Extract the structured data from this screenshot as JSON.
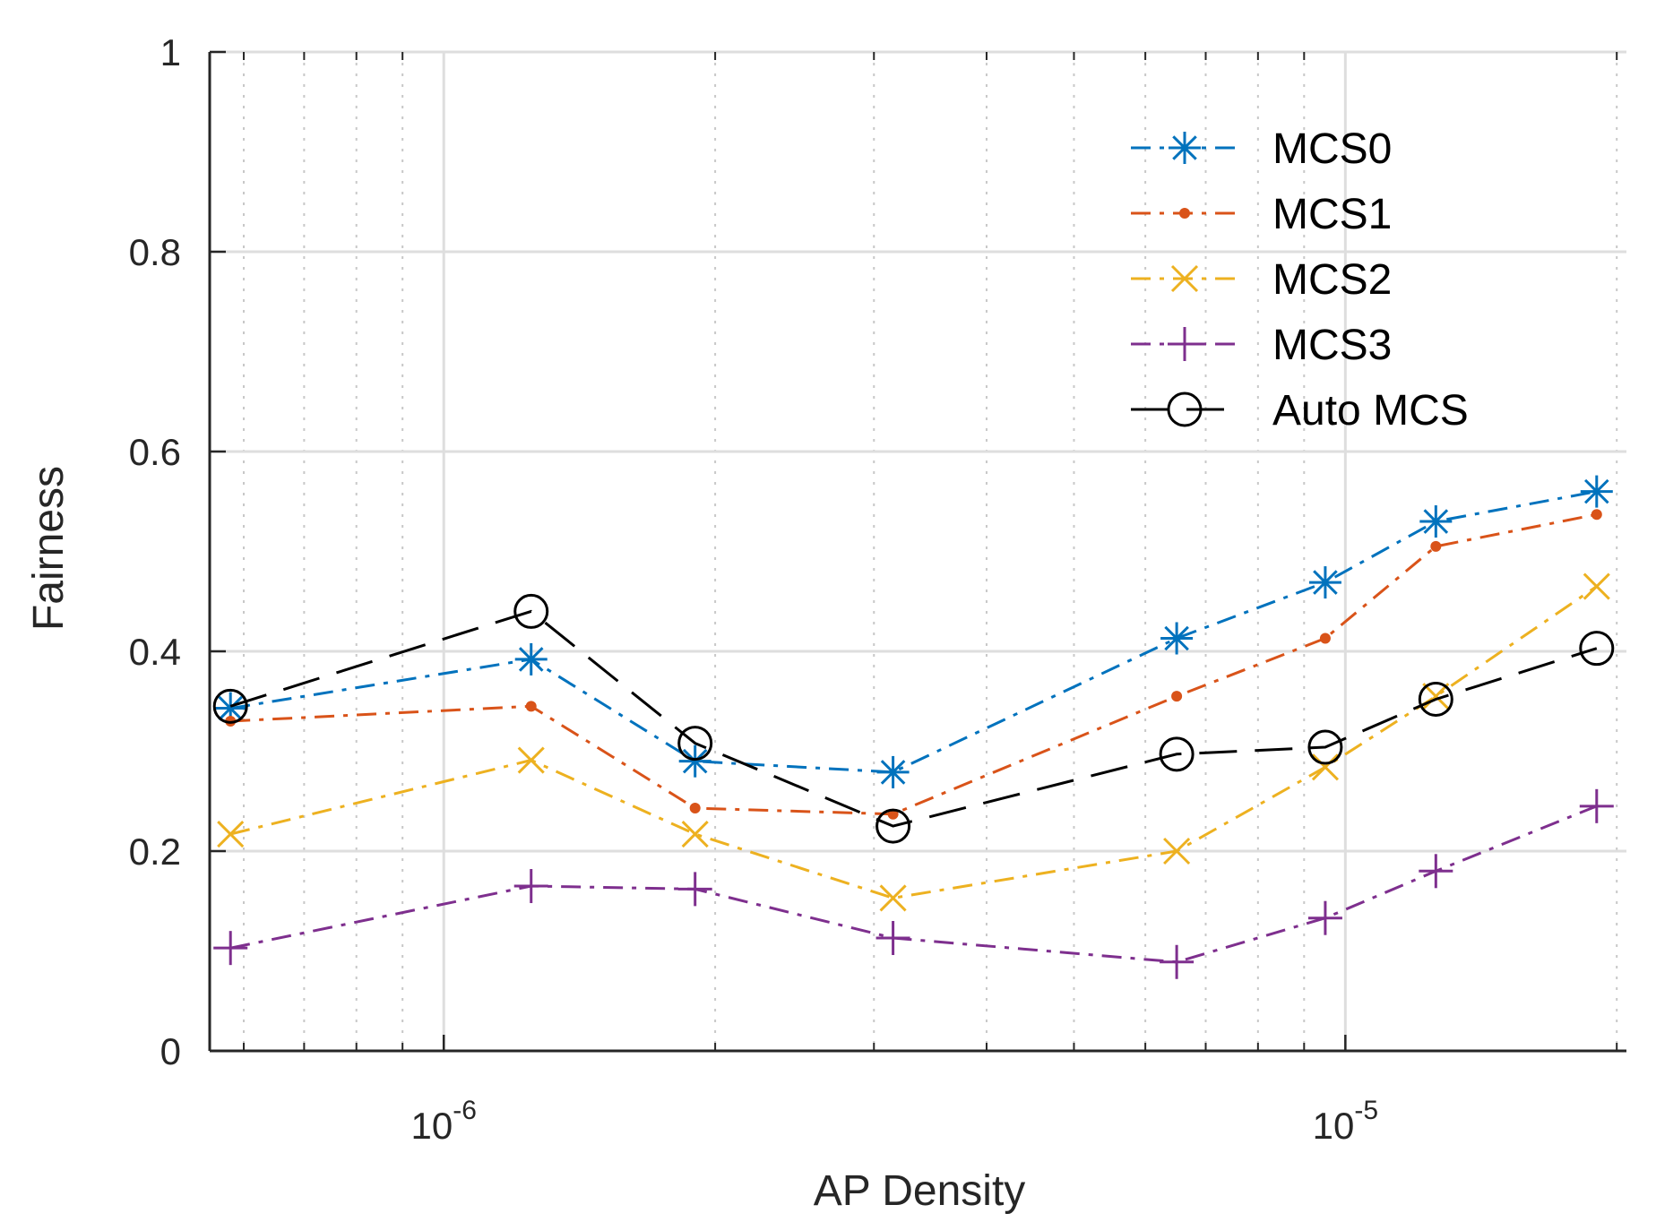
{
  "chart_data": {
    "type": "line",
    "title": "",
    "xlabel": "AP Density",
    "ylabel": "Fairness",
    "xscale": "log",
    "xlim": [
      5.5e-07,
      2.05e-05
    ],
    "ylim": [
      0,
      1
    ],
    "yticks": [
      0,
      0.2,
      0.4,
      0.6,
      0.8,
      1
    ],
    "ytick_labels": [
      "0",
      "0.2",
      "0.4",
      "0.6",
      "0.8",
      "1"
    ],
    "xticks": [
      {
        "base": "10",
        "exp": "-6",
        "value": 1e-06
      },
      {
        "base": "10",
        "exp": "-5",
        "value": 1e-05
      }
    ],
    "grid": true,
    "legend_position": "upper-right",
    "x": [
      5.8e-07,
      1.25e-06,
      1.9e-06,
      3.15e-06,
      6.5e-06,
      9.5e-06,
      1.26e-05,
      1.9e-05
    ],
    "series": [
      {
        "name": "MCS0",
        "color": "#0072BD",
        "marker": "asterisk",
        "dash": "dashdot",
        "values": [
          0.343,
          0.392,
          0.29,
          0.279,
          0.413,
          0.469,
          0.53,
          0.56
        ]
      },
      {
        "name": "MCS1",
        "color": "#D95319",
        "marker": "dot",
        "dash": "dashdot",
        "values": [
          0.33,
          0.345,
          0.243,
          0.237,
          0.355,
          0.413,
          0.505,
          0.537
        ]
      },
      {
        "name": "MCS2",
        "color": "#EDB120",
        "marker": "x",
        "dash": "dashdot",
        "values": [
          0.217,
          0.291,
          0.217,
          0.153,
          0.2,
          0.284,
          0.355,
          0.465
        ]
      },
      {
        "name": "MCS3",
        "color": "#7E2F8E",
        "marker": "plus",
        "dash": "dashdot",
        "values": [
          0.103,
          0.165,
          0.162,
          0.113,
          0.089,
          0.133,
          0.18,
          0.245
        ]
      },
      {
        "name": " Auto MCS",
        "color": "#000000",
        "marker": "circle",
        "dash": "dashed",
        "values": [
          0.345,
          0.44,
          0.308,
          0.225,
          0.297,
          0.304,
          0.352,
          0.403
        ]
      }
    ]
  }
}
